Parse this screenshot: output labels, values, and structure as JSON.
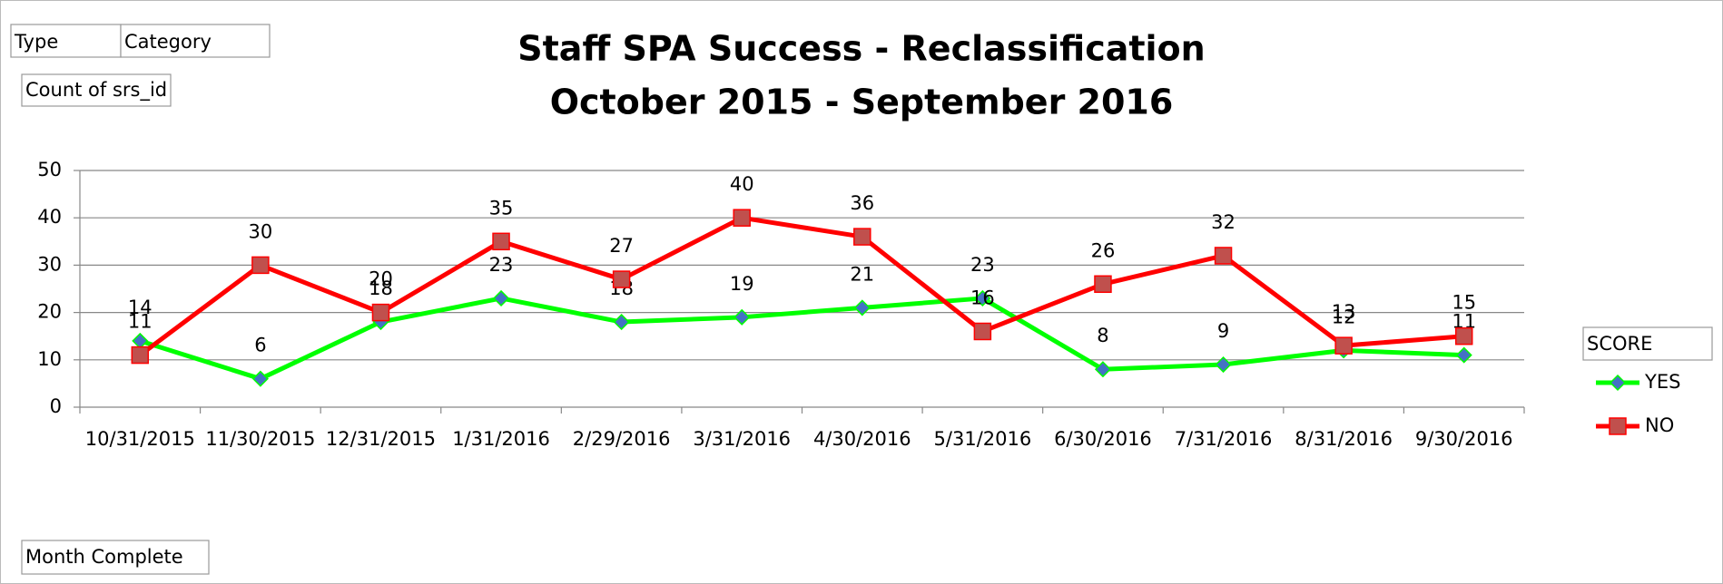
{
  "chart_data": {
    "type": "line",
    "title": "Staff SPA Success - Reclassification",
    "subtitle": "October 2015 - September 2016",
    "categories": [
      "10/31/2015",
      "11/30/2015",
      "12/31/2015",
      "1/31/2016",
      "2/29/2016",
      "3/31/2016",
      "4/30/2016",
      "5/31/2016",
      "6/30/2016",
      "7/31/2016",
      "8/31/2016",
      "9/30/2016"
    ],
    "series": [
      {
        "name": "YES",
        "color": "#00ff00",
        "marker_color": "#4472c4",
        "marker": "diamond",
        "values": [
          14,
          6,
          18,
          23,
          18,
          19,
          21,
          23,
          8,
          9,
          12,
          11
        ]
      },
      {
        "name": "NO",
        "color": "#ff0000",
        "marker_color": "#c0504d",
        "marker": "square",
        "values": [
          11,
          30,
          20,
          35,
          27,
          40,
          36,
          16,
          26,
          32,
          13,
          15
        ]
      }
    ],
    "ylim": [
      0,
      50
    ],
    "yticks": [
      0,
      10,
      20,
      30,
      40,
      50
    ],
    "grid": true,
    "legend_title": "SCORE",
    "legend": "right",
    "filter_buttons": [
      "Type",
      "Category"
    ],
    "value_button": "Count of srs_id",
    "axis_button": "Month Complete"
  }
}
